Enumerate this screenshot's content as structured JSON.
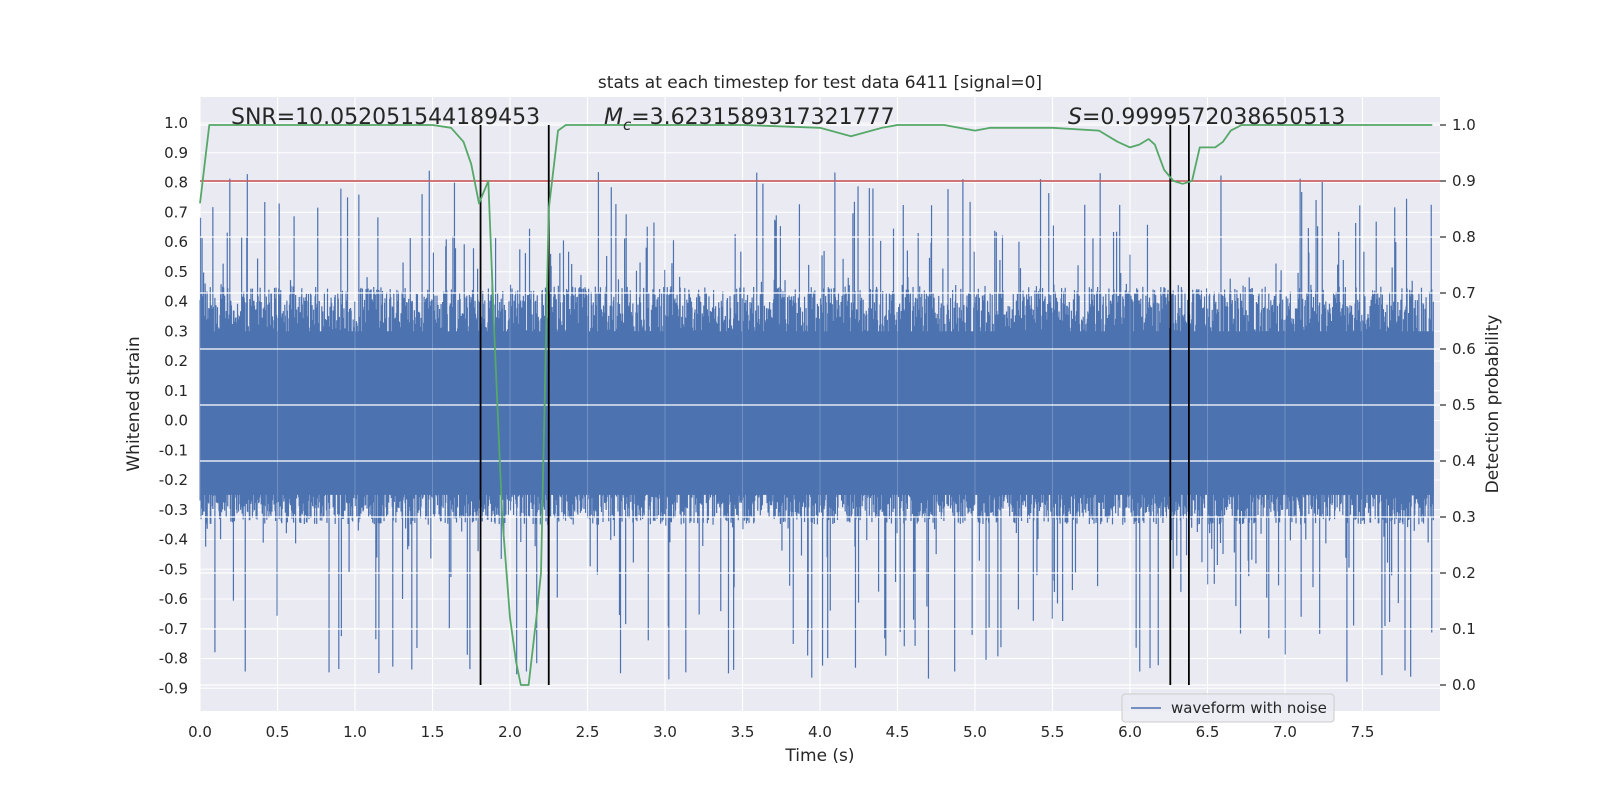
{
  "chart_data": {
    "type": "line",
    "title": "stats at each timestep for test data 6411 [signal=0]",
    "xlabel": "Time (s)",
    "ylabel": "Whitened strain",
    "y2label": "Detection probability",
    "xlim": [
      0.0,
      8.0
    ],
    "ylim": [
      -1.0,
      1.1
    ],
    "y2lim": [
      -0.05,
      1.05
    ],
    "x_ticks": [
      "0.0",
      "0.5",
      "1.0",
      "1.5",
      "2.0",
      "2.5",
      "3.0",
      "3.5",
      "4.0",
      "4.5",
      "5.0",
      "5.5",
      "6.0",
      "6.5",
      "7.0",
      "7.5"
    ],
    "y_ticks": [
      "1.0",
      "0.9",
      "0.8",
      "0.7",
      "0.6",
      "0.5",
      "0.4",
      "0.3",
      "0.2",
      "0.1",
      "0.0",
      "-0.1",
      "-0.2",
      "-0.3",
      "-0.4",
      "-0.5",
      "-0.6",
      "-0.7",
      "-0.8",
      "-0.9"
    ],
    "y2_ticks": [
      "1.0",
      "0.9",
      "0.8",
      "0.7",
      "0.6",
      "0.5",
      "0.4",
      "0.3",
      "0.2",
      "0.1",
      "0.0"
    ],
    "annotations": {
      "snr": "SNR=10.052051544189453",
      "mc_symbol": "M",
      "mc_sub": "c",
      "mc_value": "=3.6231589317321777",
      "s_symbol": "S",
      "s_value": "=0.9999572038650513"
    },
    "legend": {
      "label": "waveform with noise",
      "position": "lower-right"
    },
    "threshold": {
      "y2": 0.9,
      "color": "#c44e52"
    },
    "vertical_lines_x": [
      1.81,
      2.25,
      6.26,
      6.38
    ],
    "waveform": {
      "name": "waveform with noise",
      "color": "#4c72b0",
      "typical_range": [
        -0.35,
        0.45
      ],
      "peak_high": 0.84,
      "peak_low": -0.88,
      "samples": 2400
    },
    "probability": {
      "name": "detection probability",
      "color": "#55a868",
      "x": [
        0.0,
        0.06,
        0.15,
        0.5,
        1.0,
        1.5,
        1.62,
        1.7,
        1.75,
        1.8,
        1.86,
        1.9,
        1.95,
        2.0,
        2.04,
        2.07,
        2.12,
        2.17,
        2.2,
        2.25,
        2.31,
        2.36,
        2.5,
        3.0,
        3.5,
        4.0,
        4.2,
        4.4,
        4.5,
        4.6,
        4.8,
        5.0,
        5.1,
        5.5,
        5.8,
        5.92,
        6.0,
        6.06,
        6.12,
        6.16,
        6.22,
        6.28,
        6.34,
        6.4,
        6.45,
        6.5,
        6.55,
        6.6,
        6.65,
        6.72,
        6.8,
        7.0,
        7.5,
        7.95
      ],
      "values": [
        0.86,
        1.0,
        1.0,
        1.0,
        1.0,
        1.0,
        0.995,
        0.97,
        0.93,
        0.86,
        0.9,
        0.62,
        0.3,
        0.12,
        0.04,
        0.0,
        0.0,
        0.12,
        0.2,
        0.85,
        0.99,
        1.0,
        1.0,
        1.0,
        1.0,
        0.995,
        0.98,
        0.995,
        1.0,
        1.0,
        1.0,
        0.99,
        0.995,
        0.995,
        0.99,
        0.97,
        0.96,
        0.965,
        0.975,
        0.965,
        0.92,
        0.9,
        0.895,
        0.9,
        0.96,
        0.96,
        0.96,
        0.97,
        0.99,
        1.0,
        1.0,
        1.0,
        1.0,
        1.0
      ],
      "scale": "y2"
    },
    "colors": {
      "plot_background": "#eaeaf2",
      "grid": "#ffffff",
      "vline": "#000000"
    }
  }
}
